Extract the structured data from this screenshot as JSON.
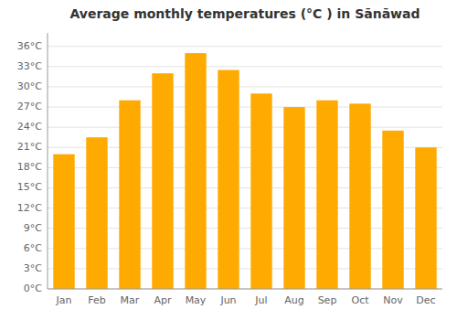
{
  "chart_data": {
    "type": "bar",
    "title": "Average monthly temperatures (°C ) in Sānāwad",
    "categories": [
      "Jan",
      "Feb",
      "Mar",
      "Apr",
      "May",
      "Jun",
      "Jul",
      "Aug",
      "Sep",
      "Oct",
      "Nov",
      "Dec"
    ],
    "values": [
      20,
      22.5,
      28,
      32,
      35,
      32.5,
      29,
      27,
      28,
      27.5,
      23.5,
      21
    ],
    "color": "#FFAA00",
    "ylim": [
      0,
      38
    ],
    "yticks": [
      {
        "value": 0,
        "label": "0°C"
      },
      {
        "value": 3,
        "label": "3°C"
      },
      {
        "value": 6,
        "label": "6°C"
      },
      {
        "value": 9,
        "label": "9°C"
      },
      {
        "value": 12,
        "label": "12°C"
      },
      {
        "value": 15,
        "label": "15°C"
      },
      {
        "value": 18,
        "label": "18°C"
      },
      {
        "value": 21,
        "label": "21°C"
      },
      {
        "value": 24,
        "label": "24°C"
      },
      {
        "value": 27,
        "label": "27°C"
      },
      {
        "value": 30,
        "label": "30°C"
      },
      {
        "value": 33,
        "label": "33°C"
      },
      {
        "value": 36,
        "label": "36°C"
      }
    ],
    "grid": true
  }
}
